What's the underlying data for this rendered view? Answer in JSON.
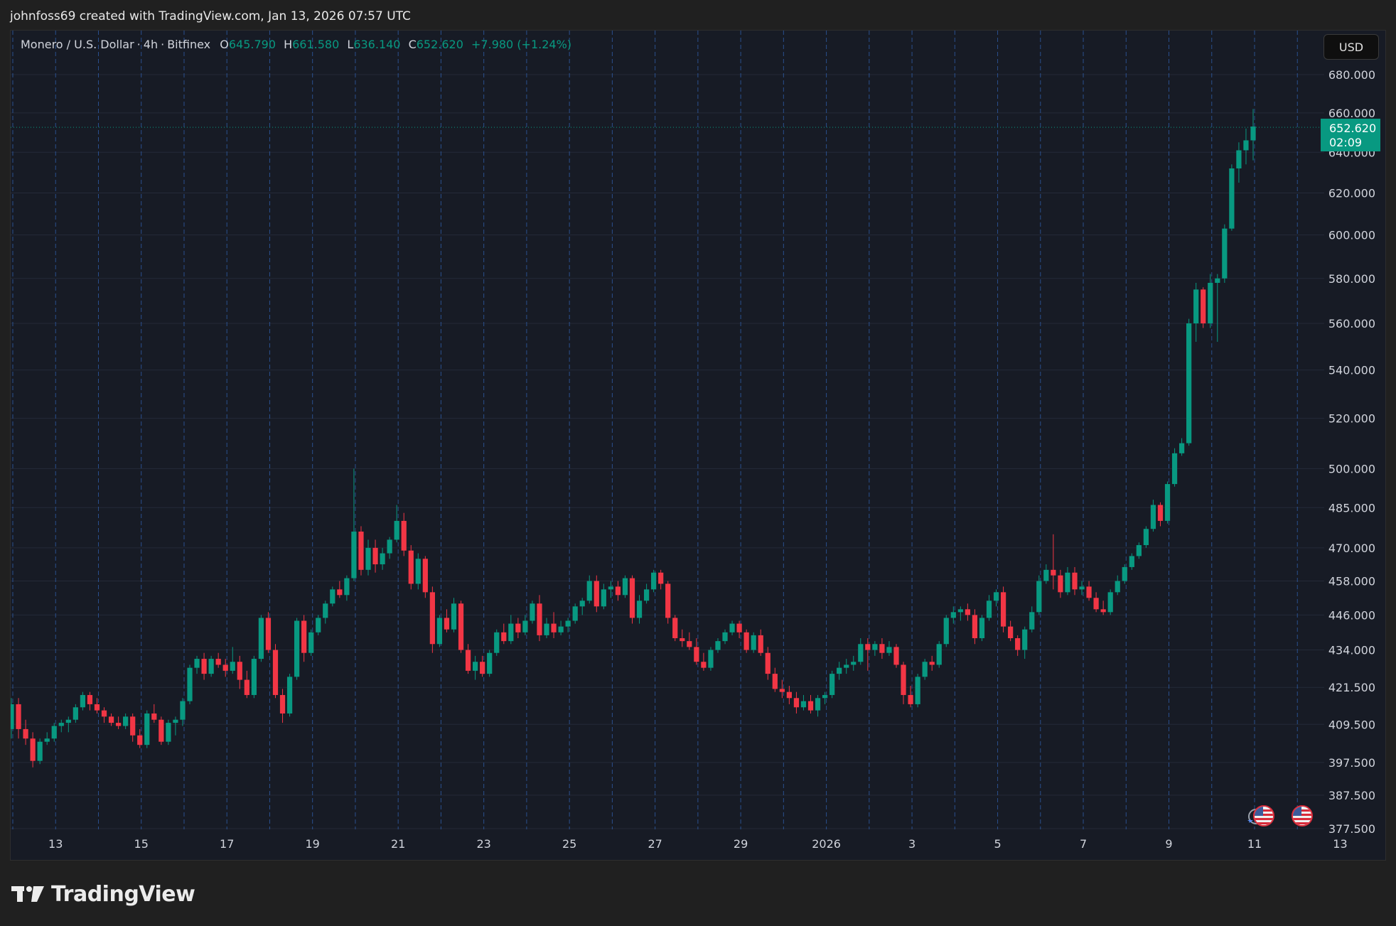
{
  "header": {
    "attribution": "johnfoss69 created with TradingView.com, Jan 13, 2026 07:57 UTC"
  },
  "legend": {
    "symbol": "Monero / U.S. Dollar",
    "interval": "4h",
    "exchange": "Bitfinex",
    "open_label": "O",
    "open": "645.790",
    "high_label": "H",
    "high": "661.580",
    "low_label": "L",
    "low": "636.140",
    "close_label": "C",
    "close": "652.620",
    "change": "+7.980 (+1.24%)"
  },
  "currency_button": "USD",
  "last_price": {
    "value": "652.620",
    "countdown": "02:09"
  },
  "footer": {
    "brand": "TradingView"
  },
  "colors": {
    "up": "#089981",
    "down": "#f23645",
    "background": "#171b25",
    "grid": "#242a38",
    "session_line": "#2f5da8",
    "text": "#d1d4dc"
  },
  "icons": [
    "tradingview-logo-icon",
    "us-flag-icon",
    "events-icon"
  ],
  "chart_data": {
    "type": "candlestick",
    "title": "Monero / U.S. Dollar · 4h · Bitfinex",
    "scale": "log",
    "y_ticks": [
      "680.000",
      "660.000",
      "640.000",
      "620.000",
      "600.000",
      "580.000",
      "560.000",
      "540.000",
      "520.000",
      "500.000",
      "485.000",
      "470.000",
      "458.000",
      "446.000",
      "434.000",
      "421.500",
      "409.500",
      "397.500",
      "387.500",
      "377.500"
    ],
    "x_ticks": [
      "13",
      "15",
      "17",
      "19",
      "21",
      "23",
      "25",
      "27",
      "29",
      "2026",
      "3",
      "5",
      "7",
      "9",
      "11",
      "13"
    ],
    "ylim": [
      376,
      690
    ],
    "last_close": 652.62,
    "grid": true,
    "series": [
      {
        "ohlc": [
          [
            408,
            418,
            405,
            416
          ],
          [
            416,
            418,
            405,
            408
          ],
          [
            408,
            411,
            403,
            405
          ],
          [
            405,
            407,
            396,
            398
          ],
          [
            398,
            405,
            397,
            404
          ],
          [
            404,
            407,
            403,
            405
          ],
          [
            405,
            410,
            404,
            409
          ],
          [
            409,
            411,
            407,
            410
          ],
          [
            410,
            412,
            407,
            411
          ],
          [
            411,
            416,
            410,
            415
          ],
          [
            415,
            420,
            414,
            419
          ],
          [
            419,
            420,
            414,
            416
          ],
          [
            416,
            418,
            413,
            414
          ],
          [
            414,
            415,
            410,
            412
          ],
          [
            412,
            413,
            409,
            410
          ],
          [
            410,
            412,
            408,
            409
          ],
          [
            409,
            413,
            408,
            412
          ],
          [
            412,
            413,
            404,
            406
          ],
          [
            406,
            408,
            402,
            403
          ],
          [
            403,
            414,
            402,
            413
          ],
          [
            413,
            416,
            410,
            411
          ],
          [
            411,
            412,
            403,
            404
          ],
          [
            404,
            411,
            403,
            410
          ],
          [
            410,
            412,
            406,
            411
          ],
          [
            411,
            418,
            409,
            417
          ],
          [
            417,
            429,
            416,
            428
          ],
          [
            428,
            432,
            426,
            431
          ],
          [
            431,
            433,
            424,
            426
          ],
          [
            426,
            432,
            425,
            431
          ],
          [
            431,
            433,
            428,
            429
          ],
          [
            429,
            431,
            425,
            427
          ],
          [
            427,
            435,
            426,
            430
          ],
          [
            430,
            432,
            421,
            424
          ],
          [
            424,
            427,
            418,
            419
          ],
          [
            419,
            432,
            418,
            431
          ],
          [
            431,
            446,
            430,
            445
          ],
          [
            445,
            447,
            433,
            434
          ],
          [
            434,
            436,
            418,
            419
          ],
          [
            419,
            421,
            410,
            413
          ],
          [
            413,
            426,
            412,
            425
          ],
          [
            425,
            445,
            424,
            444
          ],
          [
            444,
            446,
            430,
            433
          ],
          [
            433,
            441,
            432,
            440
          ],
          [
            440,
            446,
            439,
            445
          ],
          [
            445,
            451,
            443,
            450
          ],
          [
            450,
            456,
            449,
            455
          ],
          [
            455,
            458,
            452,
            453
          ],
          [
            453,
            460,
            451,
            459
          ],
          [
            459,
            500,
            458,
            476
          ],
          [
            476,
            478,
            460,
            462
          ],
          [
            462,
            473,
            460,
            470
          ],
          [
            470,
            473,
            461,
            464
          ],
          [
            464,
            470,
            462,
            468
          ],
          [
            468,
            474,
            466,
            473
          ],
          [
            473,
            486,
            472,
            480
          ],
          [
            480,
            483,
            467,
            469
          ],
          [
            469,
            471,
            455,
            457
          ],
          [
            457,
            468,
            455,
            466
          ],
          [
            466,
            467,
            452,
            454
          ],
          [
            454,
            456,
            433,
            436
          ],
          [
            436,
            446,
            435,
            445
          ],
          [
            445,
            448,
            440,
            441
          ],
          [
            441,
            452,
            440,
            450
          ],
          [
            450,
            451,
            433,
            434
          ],
          [
            434,
            436,
            426,
            427
          ],
          [
            427,
            432,
            424,
            430
          ],
          [
            430,
            432,
            425,
            426
          ],
          [
            426,
            434,
            425,
            433
          ],
          [
            433,
            441,
            432,
            440
          ],
          [
            440,
            443,
            436,
            437
          ],
          [
            437,
            446,
            436,
            443
          ],
          [
            443,
            445,
            438,
            440
          ],
          [
            440,
            446,
            439,
            444
          ],
          [
            444,
            451,
            443,
            450
          ],
          [
            450,
            453,
            437,
            439
          ],
          [
            439,
            445,
            438,
            443
          ],
          [
            443,
            447,
            438,
            440
          ],
          [
            440,
            444,
            439,
            442
          ],
          [
            442,
            445,
            440,
            444
          ],
          [
            444,
            450,
            443,
            449
          ],
          [
            449,
            452,
            446,
            451
          ],
          [
            451,
            460,
            450,
            458
          ],
          [
            458,
            460,
            447,
            449
          ],
          [
            449,
            457,
            448,
            455
          ],
          [
            455,
            458,
            452,
            456
          ],
          [
            456,
            458,
            451,
            453
          ],
          [
            453,
            460,
            452,
            459
          ],
          [
            459,
            460,
            443,
            445
          ],
          [
            445,
            453,
            443,
            451
          ],
          [
            451,
            457,
            450,
            455
          ],
          [
            455,
            462,
            454,
            461
          ],
          [
            461,
            462,
            455,
            457
          ],
          [
            457,
            458,
            443,
            445
          ],
          [
            445,
            446,
            437,
            438
          ],
          [
            438,
            441,
            435,
            437
          ],
          [
            437,
            440,
            434,
            435
          ],
          [
            435,
            438,
            429,
            430
          ],
          [
            430,
            433,
            427,
            428
          ],
          [
            428,
            435,
            427,
            434
          ],
          [
            434,
            438,
            433,
            437
          ],
          [
            437,
            441,
            436,
            440
          ],
          [
            440,
            444,
            439,
            443
          ],
          [
            443,
            444,
            438,
            440
          ],
          [
            440,
            441,
            433,
            434
          ],
          [
            434,
            440,
            433,
            439
          ],
          [
            439,
            441,
            432,
            433
          ],
          [
            433,
            435,
            424,
            426
          ],
          [
            426,
            428,
            420,
            421
          ],
          [
            421,
            424,
            418,
            420
          ],
          [
            420,
            422,
            416,
            418
          ],
          [
            418,
            420,
            413,
            415
          ],
          [
            415,
            419,
            414,
            417
          ],
          [
            417,
            419,
            413,
            414
          ],
          [
            414,
            419,
            412,
            418
          ],
          [
            418,
            420,
            416,
            419
          ],
          [
            419,
            427,
            418,
            426
          ],
          [
            426,
            430,
            424,
            428
          ],
          [
            428,
            431,
            426,
            429
          ],
          [
            429,
            432,
            427,
            430
          ],
          [
            430,
            438,
            429,
            436
          ],
          [
            436,
            438,
            427,
            434
          ],
          [
            434,
            437,
            432,
            436
          ],
          [
            436,
            438,
            431,
            433
          ],
          [
            433,
            437,
            432,
            435
          ],
          [
            435,
            436,
            428,
            429
          ],
          [
            429,
            430,
            416,
            419
          ],
          [
            419,
            422,
            415,
            416
          ],
          [
            416,
            426,
            415,
            425
          ],
          [
            425,
            431,
            424,
            430
          ],
          [
            430,
            432,
            427,
            429
          ],
          [
            429,
            437,
            428,
            436
          ],
          [
            436,
            446,
            435,
            445
          ],
          [
            445,
            449,
            443,
            447
          ],
          [
            447,
            449,
            444,
            448
          ],
          [
            448,
            450,
            444,
            446
          ],
          [
            446,
            448,
            436,
            438
          ],
          [
            438,
            446,
            437,
            445
          ],
          [
            445,
            453,
            444,
            451
          ],
          [
            451,
            455,
            449,
            454
          ],
          [
            454,
            456,
            440,
            442
          ],
          [
            442,
            444,
            437,
            438
          ],
          [
            438,
            439,
            432,
            434
          ],
          [
            434,
            442,
            431,
            441
          ],
          [
            441,
            449,
            440,
            447
          ],
          [
            447,
            460,
            446,
            458
          ],
          [
            458,
            464,
            457,
            462
          ],
          [
            462,
            475,
            455,
            460
          ],
          [
            460,
            462,
            452,
            454
          ],
          [
            454,
            463,
            453,
            461
          ],
          [
            461,
            463,
            453,
            455
          ],
          [
            455,
            458,
            453,
            456
          ],
          [
            456,
            458,
            451,
            452
          ],
          [
            452,
            454,
            447,
            448
          ],
          [
            448,
            451,
            446,
            447
          ],
          [
            447,
            455,
            446,
            454
          ],
          [
            454,
            460,
            453,
            458
          ],
          [
            458,
            464,
            457,
            463
          ],
          [
            463,
            468,
            462,
            467
          ],
          [
            467,
            472,
            466,
            471
          ],
          [
            471,
            478,
            470,
            477
          ],
          [
            477,
            488,
            476,
            486
          ],
          [
            486,
            487,
            478,
            480
          ],
          [
            480,
            495,
            479,
            494
          ],
          [
            494,
            508,
            493,
            506
          ],
          [
            506,
            512,
            505,
            510
          ],
          [
            510,
            562,
            509,
            560
          ],
          [
            560,
            578,
            552,
            575
          ],
          [
            575,
            576,
            558,
            560
          ],
          [
            560,
            582,
            558,
            578
          ],
          [
            578,
            582,
            552,
            580
          ],
          [
            580,
            605,
            578,
            603
          ],
          [
            603,
            634,
            602,
            632
          ],
          [
            632,
            645,
            625,
            641
          ],
          [
            641,
            652,
            634,
            646
          ],
          [
            646,
            662,
            636,
            653
          ]
        ]
      }
    ]
  }
}
